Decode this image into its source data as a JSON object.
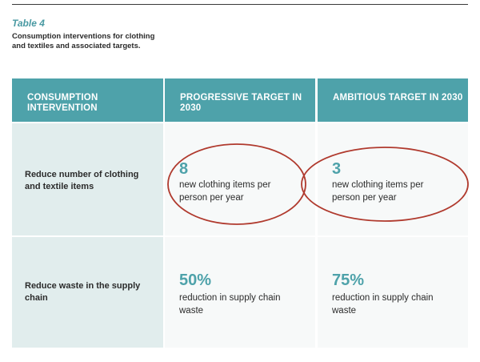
{
  "table_label": "Table 4",
  "caption": "Consumption interventions for clothing and textiles and associated targets.",
  "headers": {
    "intervention": "CONSUMPTION INTERVENTION",
    "progressive": "PROGRESSIVE TARGET IN 2030",
    "ambitious": "AMBITIOUS TARGET IN 2030"
  },
  "rows": [
    {
      "intervention": "Reduce number of clothing and textile items",
      "progressive": {
        "value": "8",
        "desc": "new clothing items per person per year"
      },
      "ambitious": {
        "value": "3",
        "desc": "new clothing items per person per year"
      }
    },
    {
      "intervention": "Reduce waste in the supply chain",
      "progressive": {
        "value": "50%",
        "desc": "reduction in supply chain waste"
      },
      "ambitious": {
        "value": "75%",
        "desc": "reduction in supply chain waste"
      }
    }
  ],
  "colors": {
    "accent": "#4ea2aa",
    "header_bg": "#4ea2aa",
    "intervention_bg": "#e1eded",
    "annotation_circle": "#b03a2e"
  }
}
